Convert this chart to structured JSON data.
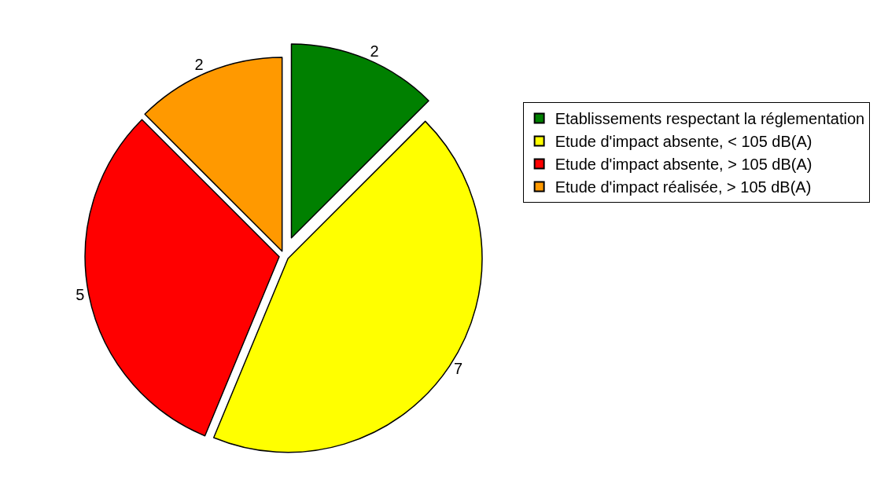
{
  "chart_data": {
    "type": "pie",
    "categories": [
      "Etablissements respectant la réglementation",
      "Etude d'impact absente, < 105 dB(A)",
      "Etude d'impact absente, > 105 dB(A)",
      "Etude d'impact réalisée, > 105 dB(A)"
    ],
    "values": [
      2,
      7,
      5,
      2
    ],
    "colors": [
      "#008000",
      "#ffff00",
      "#ff0000",
      "#ff9900"
    ],
    "data_labels": true,
    "legend": "top right"
  }
}
